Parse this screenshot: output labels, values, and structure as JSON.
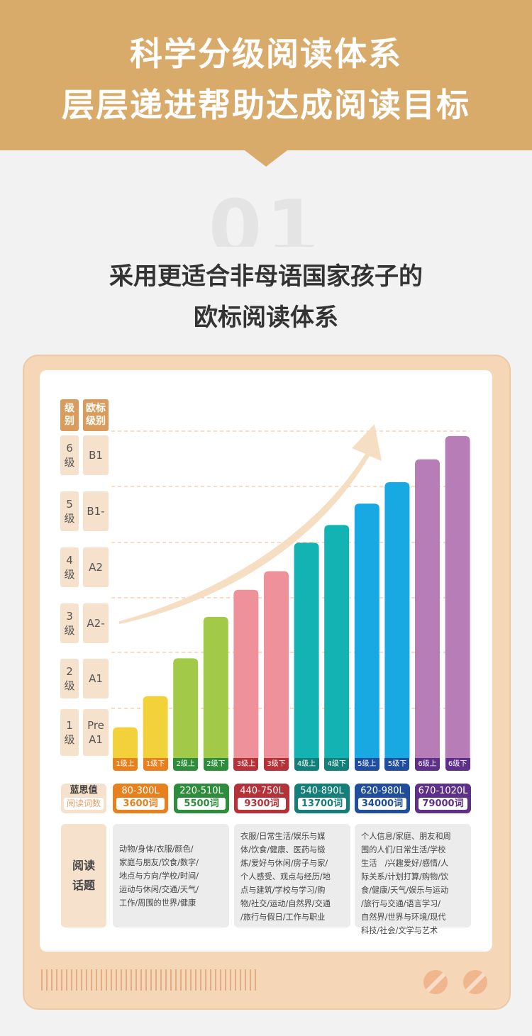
{
  "header": {
    "line1": "科学分级阅读体系",
    "line2": "层层递进帮助达成阅读目标",
    "bg_color": "#d8ab6b"
  },
  "section": {
    "number": "01",
    "title_line1": "采用更适合非母语国家孩子的",
    "title_line2": "欧标阅读体系"
  },
  "table": {
    "col_headers": [
      {
        "line1": "级",
        "line2": "别"
      },
      {
        "line1": "欧标",
        "line2": "级别"
      }
    ],
    "levels": [
      {
        "level_line1": "6",
        "level_line2": "级",
        "cefr_line1": "B1",
        "cefr_line2": ""
      },
      {
        "level_line1": "5",
        "level_line2": "级",
        "cefr_line1": "B1-",
        "cefr_line2": ""
      },
      {
        "level_line1": "4",
        "level_line2": "级",
        "cefr_line1": "A2",
        "cefr_line2": ""
      },
      {
        "level_line1": "3",
        "level_line2": "级",
        "cefr_line1": "A2-",
        "cefr_line2": ""
      },
      {
        "level_line1": "2",
        "level_line2": "级",
        "cefr_line1": "A1",
        "cefr_line2": ""
      },
      {
        "level_line1": "1",
        "level_line2": "级",
        "cefr_line1": "Pre",
        "cefr_line2": "A1"
      }
    ]
  },
  "chart_data": {
    "type": "bar",
    "title": "",
    "categories": [
      "1级上",
      "1级下",
      "2级上",
      "2级下",
      "3级上",
      "3级下",
      "4级上",
      "4级下",
      "5级上",
      "5级下",
      "6级上",
      "6级下"
    ],
    "values": [
      0.66,
      1.33,
      2.14,
      3.03,
      3.61,
      4.01,
      4.62,
      5.0,
      5.46,
      5.92,
      6.41,
      6.91
    ],
    "ylim": [
      0,
      7
    ],
    "colors": [
      "#f2d13a",
      "#f2d13a",
      "#a2c947",
      "#a2c947",
      "#ee919b",
      "#ee919b",
      "#12b3b2",
      "#12b3b2",
      "#18a8e2",
      "#18a8e2",
      "#b77db6",
      "#b77db6"
    ],
    "tag_colors": [
      "#e8801d",
      "#e8801d",
      "#2e8d3a",
      "#2e8d3a",
      "#b43238",
      "#b43238",
      "#137f78",
      "#137f78",
      "#204e9c",
      "#204e9c",
      "#5e3089",
      "#5e3089"
    ],
    "grid": true,
    "trend_arrow": true
  },
  "lexile": {
    "label_line1": "蓝思值",
    "label_line2": "阅读词数",
    "items": [
      {
        "range": "80-300L",
        "words": "3600词",
        "color": "#e8801d"
      },
      {
        "range": "220-510L",
        "words": "5500词",
        "color": "#2e8d3a"
      },
      {
        "range": "440-750L",
        "words": "9300词",
        "color": "#b43238"
      },
      {
        "range": "540-890L",
        "words": "13700词",
        "color": "#137f78"
      },
      {
        "range": "620-980L",
        "words": "34000词",
        "color": "#204e9c"
      },
      {
        "range": "670-1020L",
        "words": "79000词",
        "color": "#5e3089"
      }
    ]
  },
  "topics": {
    "label_line1": "阅读",
    "label_line2": "话题",
    "boxes": [
      {
        "lines": [
          "动物/身体/衣服/颜色/",
          "家庭与朋友/饮食/数字/",
          "地点与方向/学校/时间/",
          "运动与休闲/交通/天气/",
          "工作/周围的世界/健康"
        ]
      },
      {
        "lines": [
          "衣服/日常生活/娱乐与媒",
          "体/饮食/健康、医药与锻",
          "炼/爱好与休闲/房子与家/",
          "个人感受、观点与经历/地",
          "点与建筑/学校与学习/购",
          "物/社交/运动/自然界/交通",
          "/旅行与假日/工作与职业"
        ]
      },
      {
        "lines": [
          "个人信息/家庭、朋友和周",
          "围的人们/日常生活/学校",
          "生活　/兴趣爱好/感情/人",
          "际关系/计划打算/购物/饮",
          "食/健康/天气/娱乐与运动",
          "/旅行与交通/语言学习/",
          "自然界/世界与环境/现代",
          "科技/社会/文学与艺术"
        ]
      }
    ]
  }
}
